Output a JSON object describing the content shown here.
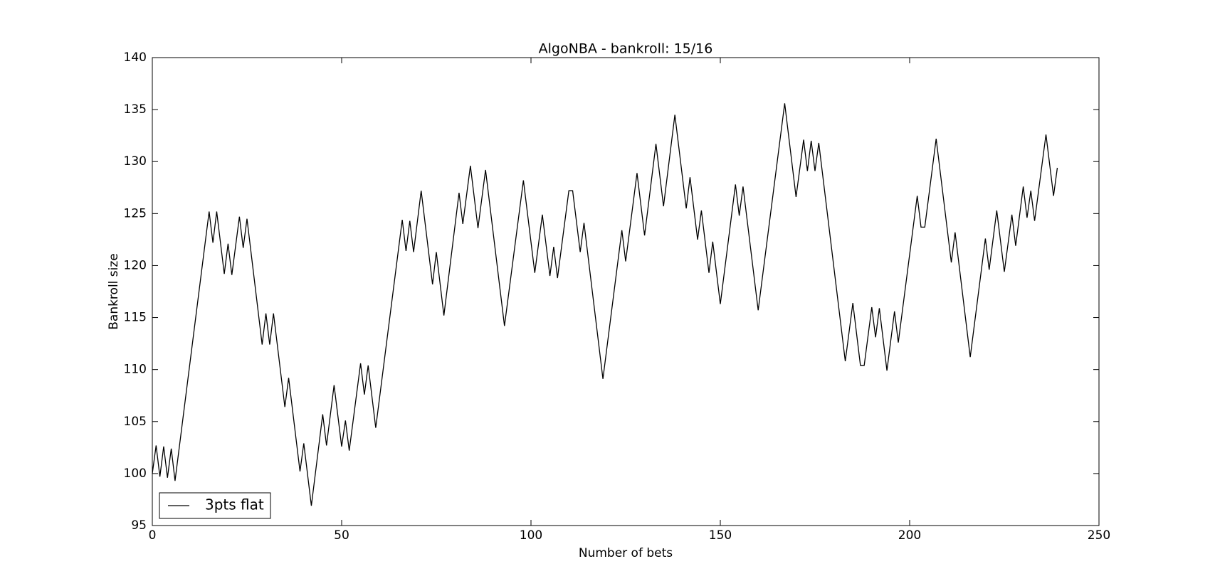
{
  "chart_data": {
    "type": "line",
    "title": "AlgoNBA - bankroll: 15/16",
    "xlabel": "Number of bets",
    "ylabel": "Bankroll size",
    "xlim": [
      0,
      250
    ],
    "xticks": [
      0,
      50,
      100,
      150,
      200,
      250
    ],
    "ylim": [
      95,
      140
    ],
    "yticks": [
      95,
      100,
      105,
      110,
      115,
      120,
      125,
      130,
      135,
      140
    ],
    "legend": "lower left",
    "x": [
      0,
      1,
      2,
      3,
      4,
      5,
      6,
      15,
      16,
      17,
      19,
      20,
      21,
      23,
      24,
      25,
      29,
      30,
      31,
      32,
      35,
      36,
      39,
      40,
      42,
      45,
      46,
      48,
      50,
      51,
      52,
      55,
      56,
      57,
      59,
      66,
      67,
      68,
      69,
      71,
      74,
      75,
      77,
      81,
      82,
      84,
      86,
      88,
      93,
      98,
      101,
      103,
      105,
      106,
      107,
      110,
      111,
      113,
      114,
      119,
      124,
      125,
      128,
      130,
      133,
      135,
      138,
      141,
      142,
      144,
      145,
      147,
      148,
      150,
      154,
      155,
      156,
      160,
      167,
      170,
      172,
      173,
      174,
      175,
      176,
      183,
      185,
      187,
      188,
      190,
      191,
      192,
      194,
      196,
      197,
      202,
      203,
      204,
      207,
      211,
      212,
      216,
      220,
      221,
      223,
      225,
      227,
      228,
      230,
      231,
      232,
      233,
      236,
      238,
      239
    ],
    "series": [
      {
        "name": "3pts flat",
        "color": "#000000",
        "values": [
          100.0,
          102.7,
          99.7,
          102.6,
          99.6,
          102.4,
          99.3,
          125.2,
          122.2,
          125.2,
          119.2,
          122.1,
          119.1,
          124.7,
          121.7,
          124.5,
          112.4,
          115.4,
          112.4,
          115.4,
          106.4,
          109.2,
          100.2,
          102.9,
          96.9,
          105.7,
          102.7,
          108.5,
          102.6,
          105.1,
          102.2,
          110.6,
          107.6,
          110.4,
          104.4,
          124.4,
          121.4,
          124.3,
          121.3,
          127.2,
          118.2,
          121.3,
          115.2,
          127.0,
          124.0,
          129.6,
          123.6,
          129.2,
          114.2,
          128.2,
          119.3,
          124.9,
          119.0,
          121.8,
          118.8,
          127.2,
          127.2,
          121.3,
          124.1,
          109.1,
          123.4,
          120.4,
          128.9,
          122.9,
          131.7,
          125.7,
          134.5,
          125.5,
          128.5,
          122.5,
          125.3,
          119.3,
          122.3,
          116.3,
          127.8,
          124.8,
          127.6,
          115.7,
          135.6,
          126.6,
          132.1,
          129.1,
          132.0,
          129.1,
          131.8,
          110.8,
          116.4,
          110.4,
          110.4,
          116.0,
          113.1,
          115.9,
          109.9,
          115.6,
          112.6,
          126.7,
          123.7,
          123.7,
          132.2,
          120.3,
          123.2,
          111.2,
          122.6,
          119.6,
          125.3,
          119.4,
          124.9,
          121.9,
          127.6,
          124.6,
          127.2,
          124.3,
          132.6,
          126.7,
          129.4
        ]
      }
    ]
  }
}
